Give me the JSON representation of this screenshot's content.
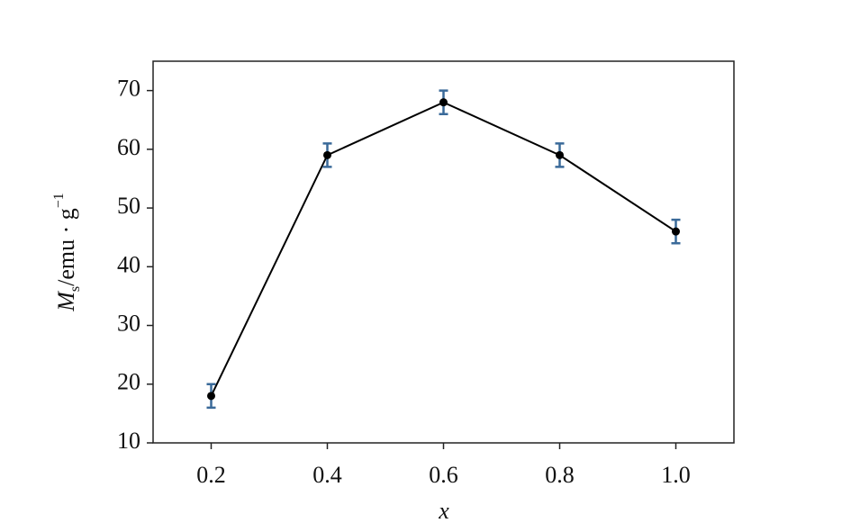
{
  "chart_data": {
    "type": "line",
    "x": [
      0.2,
      0.4,
      0.6,
      0.8,
      1.0
    ],
    "values": [
      18,
      59,
      68,
      59,
      46
    ],
    "errors": [
      2,
      2,
      2,
      2,
      2
    ],
    "line_color": "#000000",
    "error_color": "#3a6a99",
    "xlim": [
      0.1,
      1.1
    ],
    "xticks": [
      0.2,
      0.4,
      0.6,
      0.8,
      {
        "value": 1.0,
        "label": "1.0"
      }
    ],
    "ylim": [
      10,
      75
    ],
    "yticks": [
      10,
      20,
      30,
      40,
      50,
      60,
      70
    ],
    "x_label": "x",
    "y_label": {
      "symbol": "M",
      "sub": "s",
      "unit": "/emu · g",
      "sup": "−1"
    }
  }
}
